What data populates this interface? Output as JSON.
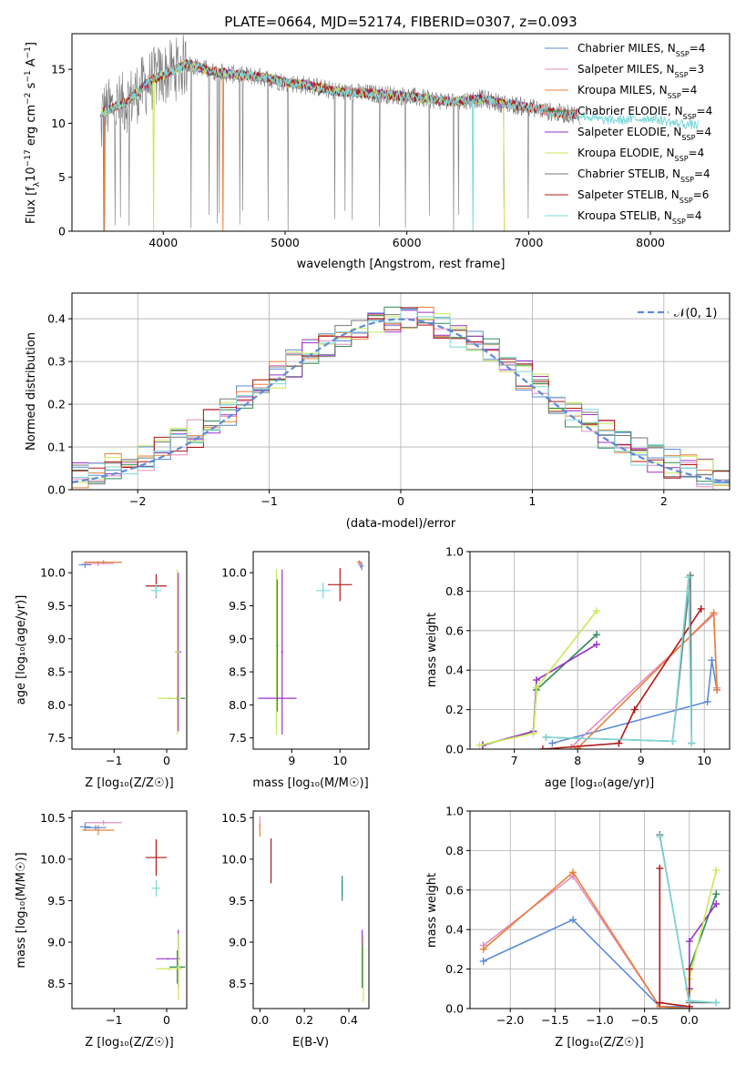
{
  "title": "PLATE=0664, MJD=52174, FIBERID=0307, z=0.093",
  "colors": {
    "chabrier_miles": "#5b8bd8",
    "salpeter_miles": "#e48cc0",
    "kroupa_miles": "#e8803a",
    "chabrier_elodie": "#2e8b57",
    "salpeter_elodie": "#9a32c8",
    "kroupa_elodie": "#c8ea5a",
    "chabrier_stelib": "#777777",
    "salpeter_stelib": "#b01818",
    "kroupa_stelib": "#7ed8d8",
    "normal": "#5b8bd8",
    "grid": "#b0b0b0"
  },
  "chart_data": [
    {
      "type": "line",
      "title": "PLATE=0664, MJD=52174, FIBERID=0307, z=0.093",
      "xlabel": "wavelength [Angstrom, rest frame]",
      "ylabel": "Flux [f_λ 10^{-17} erg cm^{-2} s^{-1} A^{-1}]",
      "xlim": [
        3250,
        8650
      ],
      "ylim": [
        0,
        18.3
      ],
      "xticks": [
        4000,
        5000,
        6000,
        7000,
        8000
      ],
      "yticks": [
        0,
        5,
        10,
        15
      ],
      "grid": false,
      "legend": "upper-right",
      "series": [
        {
          "name": "Chabrier MILES, N_SSP=4",
          "color_key": "chabrier_miles"
        },
        {
          "name": "Salpeter MILES, N_SSP=3",
          "color_key": "salpeter_miles"
        },
        {
          "name": "Kroupa MILES, N_SSP=4",
          "color_key": "kroupa_miles"
        },
        {
          "name": "Chabrier ELODIE, N_SSP=4",
          "color_key": "chabrier_elodie"
        },
        {
          "name": "Salpeter ELODIE, N_SSP=4",
          "color_key": "salpeter_elodie"
        },
        {
          "name": "Kroupa ELODIE, N_SSP=4",
          "color_key": "kroupa_elodie"
        },
        {
          "name": "Chabrier STELIB, N_SSP=4",
          "color_key": "chabrier_stelib"
        },
        {
          "name": "Salpeter STELIB, N_SSP=6",
          "color_key": "salpeter_stelib"
        },
        {
          "name": "Kroupa STELIB, N_SSP=4",
          "color_key": "kroupa_stelib"
        }
      ],
      "continuum": {
        "x": [
          3500,
          3600,
          3700,
          3800,
          3900,
          4000,
          4100,
          4200,
          4400,
          4600,
          4800,
          5000,
          5200,
          5400,
          5600,
          5800,
          6000,
          6200,
          6400,
          6600,
          6800,
          7000,
          7200,
          7400,
          7600,
          7800,
          8000,
          8200,
          8400
        ],
        "y": [
          11.0,
          11.5,
          12.0,
          13.0,
          14.0,
          14.5,
          15.0,
          15.5,
          14.8,
          14.5,
          14.3,
          13.8,
          13.5,
          13.0,
          12.8,
          12.7,
          12.5,
          12.2,
          12.0,
          12.3,
          11.8,
          11.5,
          11.0,
          10.8,
          10.3,
          10.3,
          10.5,
          10.0,
          9.8
        ]
      }
    },
    {
      "type": "step",
      "xlabel": "(data-model)/error",
      "ylabel": "Normed distribution",
      "xlim": [
        -2.5,
        2.5
      ],
      "ylim": [
        0,
        0.46
      ],
      "xticks": [
        -2,
        -1,
        0,
        1,
        2
      ],
      "yticks": [
        0.0,
        0.1,
        0.2,
        0.3,
        0.4
      ],
      "grid": true,
      "legend": "upper-right",
      "normal_label": "𝒩(0, 1)",
      "bin_width": 0.125,
      "bins_start": -2.5
    },
    {
      "type": "errorbar",
      "xlabel": "Z [log₁₀(Z/Z☉)]",
      "ylabel": "age  [log₁₀(age/yr)]",
      "xlim": [
        -1.8,
        0.38
      ],
      "ylim": [
        7.33,
        10.32
      ],
      "xticks": [
        -1,
        0
      ],
      "yticks": [
        7.5,
        8.0,
        8.5,
        9.0,
        9.5,
        10.0
      ],
      "points": [
        {
          "k": "chabrier_miles",
          "x": -1.55,
          "y": 10.12,
          "xe": 0.12,
          "ye": 0.05
        },
        {
          "k": "salpeter_miles",
          "x": -1.3,
          "y": 10.14,
          "xe": 0.3,
          "ye": 0.04
        },
        {
          "k": "kroupa_miles",
          "x": -1.2,
          "y": 10.16,
          "xe": 0.35,
          "ye": 0.03
        },
        {
          "k": "salpeter_stelib",
          "x": -0.2,
          "y": 9.8,
          "xe": 0.2,
          "ye": 0.18
        },
        {
          "k": "kroupa_stelib",
          "x": -0.2,
          "y": 9.73,
          "xe": 0.1,
          "ye": 0.1
        },
        {
          "k": "salpeter_elodie",
          "x": 0.22,
          "y": 8.8,
          "xe": 0.06,
          "ye": 1.2
        },
        {
          "k": "kroupa_elodie",
          "x": 0.2,
          "y": 8.8,
          "xe": 0.05,
          "ye": 1.25
        },
        {
          "k": "chabrier_elodie",
          "x": 0.2,
          "y": 8.1,
          "xe": 0.15,
          "ye": 0.02
        },
        {
          "k": "kroupa_elodie",
          "x": 0.05,
          "y": 8.1,
          "xe": 0.22,
          "ye": 0.02
        }
      ]
    },
    {
      "type": "errorbar",
      "xlabel": "mass [log₁₀(M/M☉)]",
      "ylabel": "",
      "xlim": [
        8.2,
        10.6
      ],
      "ylim": [
        7.33,
        10.32
      ],
      "xticks": [
        9,
        10
      ],
      "yticks": [
        7.5,
        8.0,
        8.5,
        9.0,
        9.5,
        10.0
      ],
      "points": [
        {
          "k": "salpeter_miles",
          "x": 10.42,
          "y": 10.12,
          "xe": 0.05,
          "ye": 0.05
        },
        {
          "k": "chabrier_miles",
          "x": 10.45,
          "y": 10.1,
          "xe": 0.04,
          "ye": 0.06
        },
        {
          "k": "kroupa_miles",
          "x": 10.4,
          "y": 10.16,
          "xe": 0.05,
          "ye": 0.03
        },
        {
          "k": "salpeter_stelib",
          "x": 10.0,
          "y": 9.82,
          "xe": 0.25,
          "ye": 0.25
        },
        {
          "k": "kroupa_stelib",
          "x": 9.65,
          "y": 9.73,
          "xe": 0.15,
          "ye": 0.12
        },
        {
          "k": "salpeter_elodie",
          "x": 8.8,
          "y": 8.8,
          "xe": 0.02,
          "ye": 1.25
        },
        {
          "k": "kroupa_elodie",
          "x": 8.68,
          "y": 8.8,
          "xe": 0.02,
          "ye": 1.25
        },
        {
          "k": "chabrier_elodie",
          "x": 8.7,
          "y": 8.9,
          "xe": 0.02,
          "ye": 1.0
        },
        {
          "k": "salpeter_elodie",
          "x": 8.7,
          "y": 8.1,
          "xe": 0.4,
          "ye": 0.02
        }
      ]
    },
    {
      "type": "line",
      "xlabel": "age  [log₁₀(age/yr)]",
      "ylabel": "mass weight",
      "xlim": [
        6.3,
        10.4
      ],
      "ylim": [
        0,
        1.0
      ],
      "xticks": [
        7,
        8,
        9,
        10
      ],
      "yticks": [
        0.0,
        0.2,
        0.4,
        0.6,
        0.8,
        1.0
      ],
      "grid": true,
      "series": [
        {
          "k": "chabrier_miles",
          "x": [
            7.6,
            10.05,
            10.12,
            10.2
          ],
          "y": [
            0.03,
            0.24,
            0.45,
            0.3
          ]
        },
        {
          "k": "salpeter_miles",
          "x": [
            7.9,
            10.15,
            10.2
          ],
          "y": [
            0.01,
            0.68,
            0.31
          ]
        },
        {
          "k": "kroupa_miles",
          "x": [
            8.0,
            10.15,
            10.2
          ],
          "y": [
            0.005,
            0.69,
            0.3
          ]
        },
        {
          "k": "chabrier_elodie",
          "x": [
            6.5,
            7.3,
            7.35,
            8.3
          ],
          "y": [
            0.02,
            0.09,
            0.3,
            0.58
          ]
        },
        {
          "k": "salpeter_elodie",
          "x": [
            6.5,
            7.3,
            7.35,
            8.3
          ],
          "y": [
            0.02,
            0.09,
            0.35,
            0.53
          ]
        },
        {
          "k": "kroupa_elodie",
          "x": [
            6.45,
            7.3,
            7.35,
            8.3
          ],
          "y": [
            0.02,
            0.08,
            0.31,
            0.7
          ]
        },
        {
          "k": "chabrier_stelib",
          "x": [
            7.5,
            9.5,
            9.78,
            9.8
          ],
          "y": [
            0.06,
            0.04,
            0.88,
            0.03
          ]
        },
        {
          "k": "salpeter_stelib",
          "x": [
            7.45,
            8.65,
            8.9,
            9.95
          ],
          "y": [
            0.0,
            0.03,
            0.2,
            0.71
          ]
        },
        {
          "k": "kroupa_stelib",
          "x": [
            7.5,
            9.5,
            9.75,
            9.8
          ],
          "y": [
            0.06,
            0.04,
            0.87,
            0.03
          ]
        }
      ]
    },
    {
      "type": "errorbar",
      "xlabel": "Z [log₁₀(Z/Z☉)]",
      "ylabel": "mass [log₁₀(M/M☉)]",
      "xlim": [
        -1.8,
        0.38
      ],
      "ylim": [
        8.2,
        10.58
      ],
      "xticks": [
        -1,
        0
      ],
      "yticks": [
        8.5,
        9.0,
        9.5,
        10.0,
        10.5
      ],
      "points": [
        {
          "k": "chabrier_miles",
          "x": -1.55,
          "y": 10.39,
          "xe": 0.1,
          "ye": 0.05
        },
        {
          "k": "salpeter_miles",
          "x": -1.2,
          "y": 10.44,
          "xe": 0.35,
          "ye": 0.03
        },
        {
          "k": "kroupa_miles",
          "x": -1.3,
          "y": 10.35,
          "xe": 0.3,
          "ye": 0.06
        },
        {
          "k": "chabrier_miles",
          "x": -1.35,
          "y": 10.38,
          "xe": 0.2,
          "ye": 0.03
        },
        {
          "k": "salpeter_stelib",
          "x": -0.2,
          "y": 10.02,
          "xe": 0.2,
          "ye": 0.22
        },
        {
          "k": "kroupa_stelib",
          "x": -0.2,
          "y": 9.65,
          "xe": 0.08,
          "ye": 0.1
        },
        {
          "k": "salpeter_elodie",
          "x": 0.02,
          "y": 8.8,
          "xe": 0.22,
          "ye": 0.01
        },
        {
          "k": "salpeter_elodie",
          "x": 0.22,
          "y": 8.8,
          "xe": 0.03,
          "ye": 0.35
        },
        {
          "k": "chabrier_elodie",
          "x": 0.2,
          "y": 8.7,
          "xe": 0.15,
          "ye": 0.2
        },
        {
          "k": "kroupa_elodie",
          "x": 0.05,
          "y": 8.68,
          "xe": 0.25,
          "ye": 0.02
        },
        {
          "k": "kroupa_elodie",
          "x": 0.22,
          "y": 8.7,
          "xe": 0.03,
          "ye": 0.4
        }
      ]
    },
    {
      "type": "errorbar",
      "xlabel": "E(B-V)",
      "ylabel": "",
      "xlim": [
        -0.03,
        0.49
      ],
      "ylim": [
        8.2,
        10.58
      ],
      "xticks": [
        0.0,
        0.2,
        0.4
      ],
      "yticks": [
        8.5,
        9.0,
        9.5,
        10.0,
        10.5
      ],
      "points": [
        {
          "k": "salpeter_miles",
          "x": 0.0,
          "y": 10.44,
          "xe": 0.0,
          "ye": 0.08
        },
        {
          "k": "kroupa_miles",
          "x": 0.0,
          "y": 10.35,
          "xe": 0.0,
          "ye": 0.08
        },
        {
          "k": "salpeter_stelib",
          "x": 0.05,
          "y": 9.98,
          "xe": 0.0,
          "ye": 0.27
        },
        {
          "k": "kroupa_stelib",
          "x": 0.37,
          "y": 9.65,
          "xe": 0.0,
          "ye": 0.1
        },
        {
          "k": "chabrier_elodie",
          "x": 0.37,
          "y": 9.65,
          "xe": 0.0,
          "ye": 0.15
        },
        {
          "k": "salpeter_elodie",
          "x": 0.46,
          "y": 8.8,
          "xe": 0.0,
          "ye": 0.35
        },
        {
          "k": "chabrier_elodie",
          "x": 0.46,
          "y": 8.7,
          "xe": 0.0,
          "ye": 0.25
        },
        {
          "k": "kroupa_elodie",
          "x": 0.465,
          "y": 8.68,
          "xe": 0.0,
          "ye": 0.4
        }
      ]
    },
    {
      "type": "line",
      "xlabel": "Z [log₁₀(Z/Z☉)]",
      "ylabel": "mass weight",
      "xlim": [
        -2.45,
        0.45
      ],
      "ylim": [
        0,
        1.0
      ],
      "xticks": [
        -2.0,
        -1.5,
        -1.0,
        -0.5,
        0.0
      ],
      "yticks": [
        0.0,
        0.2,
        0.4,
        0.6,
        0.8,
        1.0
      ],
      "grid": true,
      "series": [
        {
          "k": "chabrier_miles",
          "x": [
            -2.3,
            -1.3,
            -0.33,
            0.0
          ],
          "y": [
            0.24,
            0.45,
            0.01,
            0.01
          ]
        },
        {
          "k": "salpeter_miles",
          "x": [
            -2.3,
            -1.3,
            -0.33,
            0.0
          ],
          "y": [
            0.32,
            0.67,
            0.01,
            0.0
          ]
        },
        {
          "k": "kroupa_miles",
          "x": [
            -2.3,
            -1.3,
            -0.33,
            0.0
          ],
          "y": [
            0.3,
            0.69,
            0.01,
            0.0
          ]
        },
        {
          "k": "chabrier_elodie",
          "x": [
            0.0,
            0.0,
            0.3
          ],
          "y": [
            0.1,
            0.2,
            0.58
          ]
        },
        {
          "k": "salpeter_elodie",
          "x": [
            0.0,
            0.0,
            0.3
          ],
          "y": [
            0.1,
            0.34,
            0.53
          ]
        },
        {
          "k": "kroupa_elodie",
          "x": [
            0.0,
            0.0,
            0.3
          ],
          "y": [
            0.09,
            0.15,
            0.7
          ]
        },
        {
          "k": "chabrier_stelib",
          "x": [
            -0.33,
            0.0,
            0.3
          ],
          "y": [
            0.88,
            0.03,
            0.03
          ]
        },
        {
          "k": "salpeter_stelib",
          "x": [
            -0.33,
            -0.33,
            0.0,
            0.0
          ],
          "y": [
            0.71,
            0.03,
            0.01,
            0.2
          ]
        },
        {
          "k": "kroupa_stelib",
          "x": [
            -0.33,
            0.0,
            0.3
          ],
          "y": [
            0.87,
            0.04,
            0.03
          ]
        }
      ]
    }
  ]
}
